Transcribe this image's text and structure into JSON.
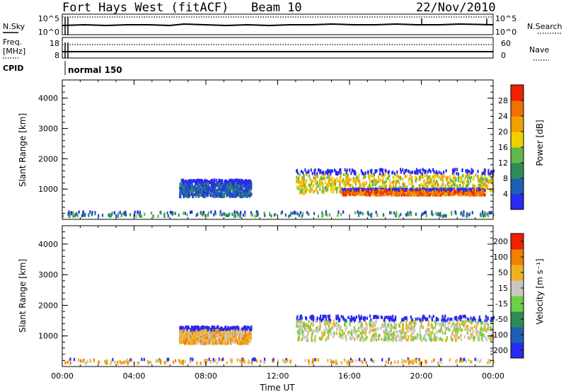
{
  "header": {
    "station": "Fort Hays West (fitACF)",
    "beam": "Beam 10",
    "date": "22/Nov/2010"
  },
  "noise_panel": {
    "left_label": "N.Sky",
    "left_ticks": [
      "10^5",
      "10^0"
    ],
    "right_label": "N.Search",
    "right_ticks": [
      "10^5",
      "10^0"
    ]
  },
  "freq_panel": {
    "left_label_1": "Freq.",
    "left_label_2": "[MHz]",
    "left_ticks": [
      "18",
      "8"
    ],
    "right_label": "Nave",
    "right_ticks": [
      "60",
      "0"
    ]
  },
  "cpid": {
    "label": "CPID",
    "value": "normal 150"
  },
  "chart_data": [
    {
      "type": "heatmap",
      "name": "power",
      "ylabel": "Slant Range [km]",
      "xlabel": "",
      "xlim": [
        0,
        24
      ],
      "ylim": [
        0,
        4600
      ],
      "yticks": [
        "1000",
        "2000",
        "3000",
        "4000"
      ],
      "colorbar": {
        "label": "Power [dB]",
        "ticks": [
          "28",
          "24",
          "20",
          "16",
          "12",
          "8",
          "4"
        ],
        "colors": [
          "#2a2af0",
          "#1e5fb4",
          "#2e8b57",
          "#5fb84a",
          "#f0d000",
          "#f0a000",
          "#f07000",
          "#f02000"
        ]
      },
      "regions": [
        {
          "t0": 6.5,
          "t1": 10.5,
          "r0": 800,
          "r1": 1350,
          "level": 1
        },
        {
          "t0": 13.0,
          "t1": 24.0,
          "r0": 900,
          "r1": 1700,
          "level": 4
        },
        {
          "t0": 15.5,
          "t1": 23.5,
          "r0": 850,
          "r1": 1050,
          "level": 6
        },
        {
          "t0": 0.0,
          "t1": 24.0,
          "r0": 150,
          "r1": 300,
          "level": 2
        }
      ]
    },
    {
      "type": "heatmap",
      "name": "velocity",
      "ylabel": "Slant Range [km]",
      "xlabel": "Time UT",
      "xticks": [
        "00:00",
        "04:00",
        "08:00",
        "12:00",
        "16:00",
        "20:00",
        "00:00"
      ],
      "xlim": [
        0,
        24
      ],
      "ylim": [
        0,
        4600
      ],
      "yticks": [
        "1000",
        "2000",
        "3000",
        "4000"
      ],
      "colorbar": {
        "label": "Velocity [m s⁻¹]",
        "ticks": [
          "200",
          "100",
          "50",
          "15",
          "-15",
          "-50",
          "-100",
          "-200"
        ],
        "colors": [
          "#2a2af0",
          "#1e5fb4",
          "#2e8b57",
          "#6cd04a",
          "#c8c8c0",
          "#f0b020",
          "#f08000",
          "#f02000"
        ]
      },
      "regions": [
        {
          "t0": 6.5,
          "t1": 10.5,
          "r0": 800,
          "r1": 1350,
          "level": 5
        },
        {
          "t0": 13.0,
          "t1": 24.0,
          "r0": 900,
          "r1": 1700,
          "level": 4
        },
        {
          "t0": 0.0,
          "t1": 24.0,
          "r0": 150,
          "r1": 300,
          "level": 5
        }
      ]
    }
  ]
}
